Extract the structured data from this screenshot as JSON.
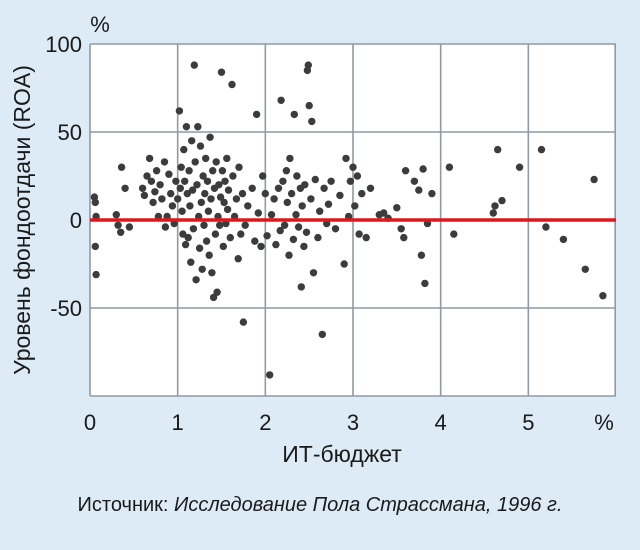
{
  "source": {
    "prefix": "Источник: ",
    "text": "Исследование Пола Страссмана, 1996 г."
  },
  "colors": {
    "background": "#dcebf5",
    "plot_background": "#ffffff",
    "grid": "#8e9aa6",
    "points": "#3c3c3c",
    "zero_line": "#e0161d"
  },
  "chart_data": {
    "type": "scatter",
    "xlabel": "ИТ-бюджет",
    "x_unit": "%",
    "ylabel": "Уровень фондоотдачи (ROA)",
    "y_unit": "%",
    "xlim": [
      0,
      6
    ],
    "ylim": [
      -100,
      100
    ],
    "x_ticks": [
      "0",
      "1",
      "2",
      "3",
      "4",
      "5"
    ],
    "y_ticks": [
      "100",
      "50",
      "0",
      "-50"
    ],
    "x_tick_values": [
      0,
      1,
      2,
      3,
      4,
      5
    ],
    "y_tick_values": [
      100,
      50,
      0,
      -50
    ],
    "grid": true,
    "reference_line": {
      "y": 0
    },
    "points": [
      [
        0.05,
        13
      ],
      [
        0.06,
        10
      ],
      [
        0.07,
        2
      ],
      [
        0.06,
        -15
      ],
      [
        0.07,
        -31
      ],
      [
        0.3,
        3
      ],
      [
        0.32,
        -3
      ],
      [
        0.35,
        -7
      ],
      [
        0.36,
        30
      ],
      [
        0.4,
        18
      ],
      [
        0.45,
        -4
      ],
      [
        0.6,
        18
      ],
      [
        0.62,
        14
      ],
      [
        0.65,
        25
      ],
      [
        0.68,
        35
      ],
      [
        0.7,
        22
      ],
      [
        0.72,
        10
      ],
      [
        0.74,
        16
      ],
      [
        0.76,
        28
      ],
      [
        0.78,
        2
      ],
      [
        0.8,
        20
      ],
      [
        0.82,
        12
      ],
      [
        0.85,
        33
      ],
      [
        0.86,
        -4
      ],
      [
        0.88,
        2
      ],
      [
        0.9,
        26
      ],
      [
        0.92,
        15
      ],
      [
        0.94,
        8
      ],
      [
        0.96,
        -2
      ],
      [
        0.98,
        22
      ],
      [
        1.0,
        12
      ],
      [
        1.02,
        62
      ],
      [
        1.03,
        18
      ],
      [
        1.04,
        30
      ],
      [
        1.05,
        5
      ],
      [
        1.06,
        -8
      ],
      [
        1.07,
        40
      ],
      [
        1.08,
        22
      ],
      [
        1.09,
        -14
      ],
      [
        1.1,
        53
      ],
      [
        1.11,
        15
      ],
      [
        1.12,
        -10
      ],
      [
        1.13,
        28
      ],
      [
        1.14,
        8
      ],
      [
        1.15,
        -24
      ],
      [
        1.16,
        45
      ],
      [
        1.17,
        17
      ],
      [
        1.18,
        -5
      ],
      [
        1.19,
        88
      ],
      [
        1.2,
        33
      ],
      [
        1.21,
        -34
      ],
      [
        1.22,
        20
      ],
      [
        1.23,
        53
      ],
      [
        1.24,
        2
      ],
      [
        1.25,
        -16
      ],
      [
        1.26,
        42
      ],
      [
        1.27,
        10
      ],
      [
        1.28,
        -28
      ],
      [
        1.29,
        25
      ],
      [
        1.3,
        -3
      ],
      [
        1.31,
        15
      ],
      [
        1.32,
        35
      ],
      [
        1.33,
        -12
      ],
      [
        1.34,
        22
      ],
      [
        1.35,
        5
      ],
      [
        1.36,
        -20
      ],
      [
        1.37,
        47
      ],
      [
        1.38,
        12
      ],
      [
        1.39,
        -30
      ],
      [
        1.4,
        28
      ],
      [
        1.41,
        -44
      ],
      [
        1.42,
        18
      ],
      [
        1.43,
        -8
      ],
      [
        1.44,
        33
      ],
      [
        1.45,
        -41
      ],
      [
        1.46,
        2
      ],
      [
        1.47,
        20
      ],
      [
        1.48,
        -3
      ],
      [
        1.49,
        13
      ],
      [
        1.5,
        84
      ],
      [
        1.51,
        28
      ],
      [
        1.52,
        -15
      ],
      [
        1.53,
        10
      ],
      [
        1.54,
        22
      ],
      [
        1.55,
        -2
      ],
      [
        1.56,
        35
      ],
      [
        1.57,
        6
      ],
      [
        1.58,
        17
      ],
      [
        1.6,
        -10
      ],
      [
        1.62,
        77
      ],
      [
        1.63,
        25
      ],
      [
        1.65,
        2
      ],
      [
        1.67,
        12
      ],
      [
        1.69,
        -22
      ],
      [
        1.7,
        30
      ],
      [
        1.72,
        -8
      ],
      [
        1.74,
        15
      ],
      [
        1.75,
        -58
      ],
      [
        1.77,
        -3
      ],
      [
        1.8,
        8
      ],
      [
        1.85,
        18
      ],
      [
        1.88,
        -12
      ],
      [
        1.9,
        60
      ],
      [
        1.92,
        4
      ],
      [
        1.95,
        -15
      ],
      [
        1.97,
        25
      ],
      [
        2.0,
        15
      ],
      [
        2.02,
        -9
      ],
      [
        2.05,
        -88
      ],
      [
        2.07,
        3
      ],
      [
        2.1,
        12
      ],
      [
        2.12,
        -14
      ],
      [
        2.15,
        18
      ],
      [
        2.17,
        -6
      ],
      [
        2.18,
        68
      ],
      [
        2.2,
        22
      ],
      [
        2.22,
        -3
      ],
      [
        2.24,
        28
      ],
      [
        2.25,
        10
      ],
      [
        2.27,
        -20
      ],
      [
        2.28,
        35
      ],
      [
        2.3,
        15
      ],
      [
        2.32,
        -11
      ],
      [
        2.33,
        60
      ],
      [
        2.35,
        3
      ],
      [
        2.36,
        25
      ],
      [
        2.38,
        -4
      ],
      [
        2.4,
        18
      ],
      [
        2.41,
        -38
      ],
      [
        2.42,
        8
      ],
      [
        2.44,
        -15
      ],
      [
        2.45,
        20
      ],
      [
        2.47,
        -7
      ],
      [
        2.48,
        85
      ],
      [
        2.49,
        88
      ],
      [
        2.5,
        65
      ],
      [
        2.52,
        12
      ],
      [
        2.53,
        56
      ],
      [
        2.55,
        -30
      ],
      [
        2.57,
        23
      ],
      [
        2.6,
        -10
      ],
      [
        2.62,
        5
      ],
      [
        2.65,
        -65
      ],
      [
        2.67,
        18
      ],
      [
        2.7,
        -2
      ],
      [
        2.72,
        9
      ],
      [
        2.75,
        22
      ],
      [
        2.8,
        -5
      ],
      [
        2.85,
        14
      ],
      [
        2.9,
        -25
      ],
      [
        2.92,
        35
      ],
      [
        2.95,
        2
      ],
      [
        2.97,
        22
      ],
      [
        3.0,
        30
      ],
      [
        3.02,
        8
      ],
      [
        3.05,
        25
      ],
      [
        3.07,
        -8
      ],
      [
        3.1,
        15
      ],
      [
        3.15,
        -10
      ],
      [
        3.2,
        18
      ],
      [
        3.3,
        3
      ],
      [
        3.35,
        4
      ],
      [
        3.4,
        1
      ],
      [
        3.5,
        7
      ],
      [
        3.55,
        -5
      ],
      [
        3.58,
        -10
      ],
      [
        3.6,
        28
      ],
      [
        3.7,
        22
      ],
      [
        3.75,
        17
      ],
      [
        3.78,
        -20
      ],
      [
        3.8,
        29
      ],
      [
        3.82,
        -36
      ],
      [
        3.85,
        -2
      ],
      [
        3.9,
        15
      ],
      [
        4.1,
        30
      ],
      [
        4.15,
        -8
      ],
      [
        4.6,
        4
      ],
      [
        4.62,
        8
      ],
      [
        4.65,
        40
      ],
      [
        4.7,
        11
      ],
      [
        4.9,
        30
      ],
      [
        5.15,
        40
      ],
      [
        5.2,
        -4
      ],
      [
        5.4,
        -11
      ],
      [
        5.65,
        -28
      ],
      [
        5.75,
        23
      ],
      [
        5.85,
        -43
      ]
    ]
  }
}
